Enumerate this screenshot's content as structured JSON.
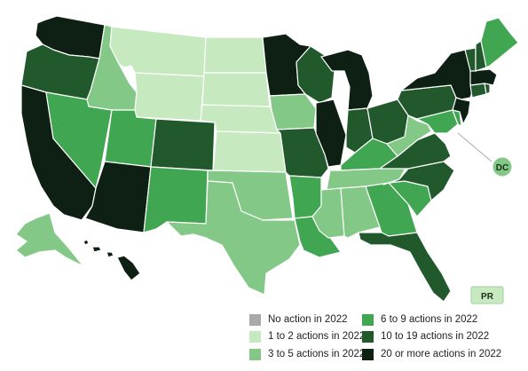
{
  "colors": {
    "none": "#a9a9a9",
    "c1": "#c7e9c0",
    "c2": "#83c886",
    "c3": "#41a651",
    "c4": "#21592c",
    "c5": "#0d2013"
  },
  "legend": [
    {
      "label": "No action in 2022",
      "color": "#a9a9a9"
    },
    {
      "label": "1 to 2 actions in 2022",
      "color": "#c7e9c0"
    },
    {
      "label": "3 to 5 actions in 2022",
      "color": "#83c886"
    },
    {
      "label": "6 to 9 actions in 2022",
      "color": "#41a651"
    },
    {
      "label": "10 to 19 actions in 2022",
      "color": "#21592c"
    },
    {
      "label": "20 or more actions in 2022",
      "color": "#0d2013"
    }
  ],
  "badges": {
    "dc": "DC",
    "pr": "PR"
  },
  "states": {
    "WA": "c5",
    "OR": "c4",
    "CA": "c5",
    "ID": "c2",
    "NV": "c3",
    "MT": "c1",
    "WY": "c1",
    "UT": "c3",
    "AZ": "c5",
    "CO": "c4",
    "NM": "c3",
    "ND": "c1",
    "SD": "c1",
    "NE": "c1",
    "KS": "c1",
    "OK": "c2",
    "TX": "c2",
    "MN": "c5",
    "IA": "c2",
    "MO": "c4",
    "AR": "c3",
    "LA": "c3",
    "WI": "c4",
    "IL": "c5",
    "MI": "c5",
    "IN": "c4",
    "OH": "c4",
    "KY": "c3",
    "TN": "c2",
    "MS": "c2",
    "AL": "c2",
    "GA": "c3",
    "FL": "c4",
    "SC": "c3",
    "NC": "c4",
    "VA": "c4",
    "WV": "c2",
    "PA": "c4",
    "NY": "c5",
    "ME": "c3",
    "NH": "c4",
    "VT": "c4",
    "MA": "c5",
    "CT": "c4",
    "RI": "c4",
    "NJ": "c5",
    "DE": "c3",
    "MD": "c3",
    "AK": "c2",
    "HI": "c5",
    "DC": "c2",
    "PR": "c1"
  }
}
